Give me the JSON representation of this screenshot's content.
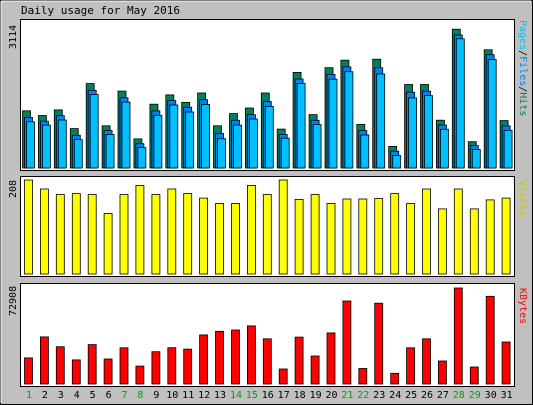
{
  "title": "Daily usage for May 2016",
  "colors": {
    "background": "#c0c0c0",
    "plot_bg": "#ffffff",
    "hits": "#00805c",
    "files": "#0080ff",
    "pages": "#00c0ff",
    "visits": "#ffff00",
    "kbytes": "#ff0000",
    "weekday_label": "#000000",
    "weekend_label": "#00a000"
  },
  "chart_data": [
    {
      "type": "bar",
      "panel": "hits-files-pages",
      "right_label": "Pages/Files/Hits",
      "ymax_label": "3114",
      "ylim": [
        0,
        3114
      ],
      "categories": [
        "1",
        "2",
        "3",
        "4",
        "5",
        "6",
        "7",
        "8",
        "9",
        "10",
        "11",
        "12",
        "13",
        "14",
        "15",
        "16",
        "17",
        "18",
        "19",
        "20",
        "21",
        "22",
        "23",
        "24",
        "25",
        "26",
        "27",
        "28",
        "29",
        "30",
        "31"
      ],
      "weekend_days": [
        "1",
        "7",
        "8",
        "14",
        "15",
        "21",
        "22",
        "28",
        "29"
      ],
      "series": [
        {
          "name": "Hits",
          "values": [
            1220,
            1120,
            1240,
            840,
            1800,
            900,
            1640,
            620,
            1360,
            1560,
            1400,
            1600,
            900,
            1160,
            1280,
            1600,
            830,
            2040,
            1140,
            2140,
            2300,
            930,
            2320,
            460,
            1780,
            1780,
            1020,
            2960,
            560,
            2520,
            1010
          ]
        },
        {
          "name": "Files",
          "values": [
            1120,
            1040,
            1160,
            740,
            1700,
            840,
            1540,
            560,
            1260,
            1480,
            1340,
            1500,
            780,
            1060,
            1180,
            1460,
            760,
            1940,
            1060,
            2040,
            2200,
            840,
            2180,
            400,
            1660,
            1680,
            960,
            2880,
            520,
            2460,
            940
          ]
        },
        {
          "name": "Pages",
          "values": [
            1070,
            1000,
            1110,
            690,
            1650,
            800,
            1490,
            520,
            1210,
            1430,
            1280,
            1440,
            710,
            1000,
            1130,
            1400,
            720,
            1890,
            1010,
            1980,
            2140,
            790,
            2090,
            350,
            1580,
            1630,
            910,
            2840,
            480,
            2400,
            890
          ]
        }
      ]
    },
    {
      "type": "bar",
      "panel": "visits",
      "right_label": "Visits",
      "ymax_label": "208",
      "ylim": [
        0,
        208
      ],
      "categories": [
        "1",
        "2",
        "3",
        "4",
        "5",
        "6",
        "7",
        "8",
        "9",
        "10",
        "11",
        "12",
        "13",
        "14",
        "15",
        "16",
        "17",
        "18",
        "19",
        "20",
        "21",
        "22",
        "23",
        "24",
        "25",
        "26",
        "27",
        "28",
        "29",
        "30",
        "31"
      ],
      "series": [
        {
          "name": "Visits",
          "values": [
            208,
            188,
            176,
            178,
            176,
            134,
            176,
            196,
            176,
            188,
            178,
            168,
            156,
            156,
            196,
            176,
            208,
            165,
            176,
            156,
            166,
            166,
            167,
            178,
            156,
            188,
            144,
            188,
            144,
            164,
            168
          ]
        }
      ]
    },
    {
      "type": "bar",
      "panel": "kbytes",
      "right_label": "KBytes",
      "ymax_label": "72908",
      "ylim": [
        0,
        72908
      ],
      "categories": [
        "1",
        "2",
        "3",
        "4",
        "5",
        "6",
        "7",
        "8",
        "9",
        "10",
        "11",
        "12",
        "13",
        "14",
        "15",
        "16",
        "17",
        "18",
        "19",
        "20",
        "21",
        "22",
        "23",
        "24",
        "25",
        "26",
        "27",
        "28",
        "29",
        "30",
        "31"
      ],
      "series": [
        {
          "name": "KBytes",
          "values": [
            19800,
            35800,
            28300,
            18300,
            29900,
            19000,
            27500,
            13600,
            24500,
            27600,
            26500,
            37300,
            40000,
            41000,
            44100,
            34300,
            11400,
            35600,
            21300,
            38800,
            63000,
            11800,
            61400,
            8100,
            27500,
            34300,
            17500,
            72908,
            12900,
            66600,
            31900
          ]
        }
      ]
    }
  ]
}
